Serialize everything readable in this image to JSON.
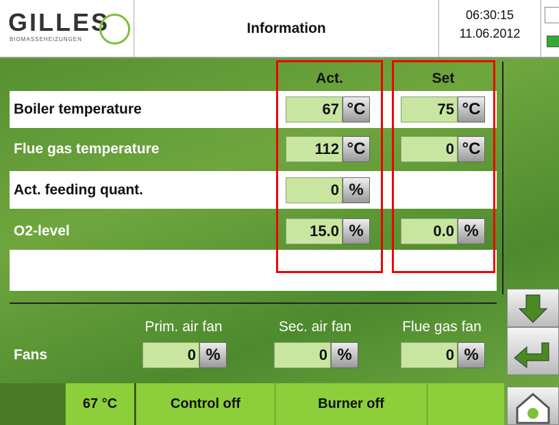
{
  "header": {
    "logo": "GILLES",
    "logo_sub": "BIOMASSEHEIZUNGEN",
    "title": "Information",
    "time": "06:30:15",
    "date": "11.06.2012"
  },
  "columns": [
    "Act.",
    "Set"
  ],
  "rows": [
    {
      "label": "Boiler temperature",
      "act": "67",
      "act_unit": "°C",
      "set": "75",
      "set_unit": "°C"
    },
    {
      "label": "Flue gas temperature",
      "act": "112",
      "act_unit": "°C",
      "set": "0",
      "set_unit": "°C"
    },
    {
      "label": "Act. feeding quant.",
      "act": "0",
      "act_unit": "%"
    },
    {
      "label": "O2-level",
      "act": "15.0",
      "act_unit": "%",
      "set": "0.0",
      "set_unit": "%"
    }
  ],
  "fans": {
    "label": "Fans",
    "items": [
      {
        "name": "Prim. air fan",
        "value": "0",
        "unit": "%"
      },
      {
        "name": "Sec. air fan",
        "value": "0",
        "unit": "%"
      },
      {
        "name": "Flue gas fan",
        "value": "0",
        "unit": "%"
      }
    ]
  },
  "status": [
    "67 °C",
    "Control off",
    "Burner off"
  ]
}
